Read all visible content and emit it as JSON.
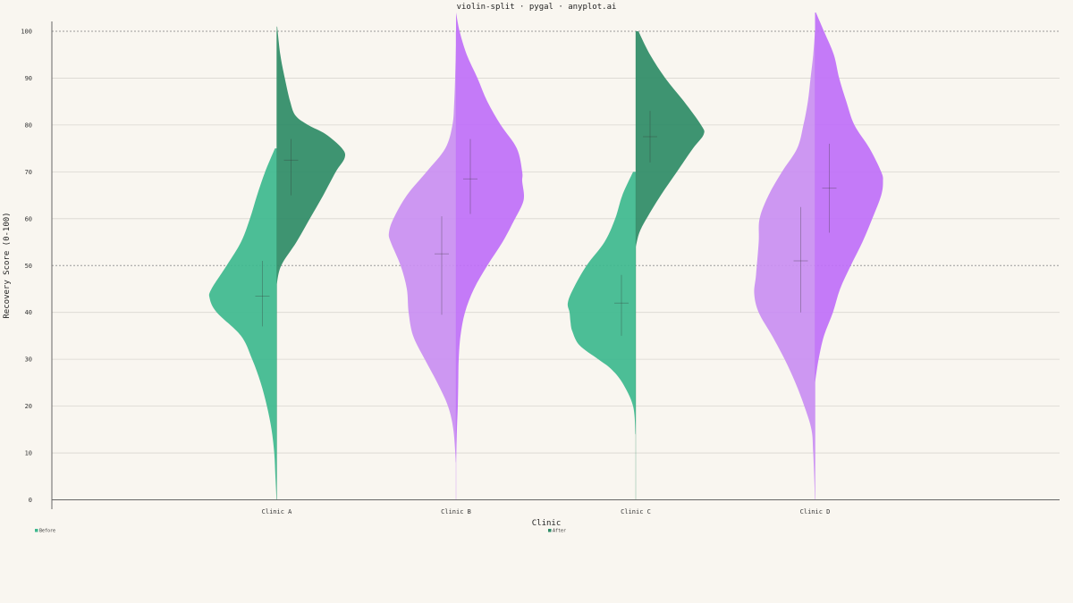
{
  "colors": {
    "background": "#f9f6f0",
    "grid": "#d9d6d0",
    "axis": "#555555",
    "before_teal": "#3db88e",
    "after_teal": "#2e8b66",
    "before_purple": "#c98ef2",
    "after_purple": "#bf6ff9"
  },
  "chart_data": {
    "type": "violin-split",
    "title": "violin-split · pygal · anyplot.ai",
    "xlabel": "Clinic",
    "ylabel": "Recovery Score (0-100)",
    "ylim": [
      0,
      100
    ],
    "yticks": [
      "0",
      "10",
      "20",
      "30",
      "40",
      "50",
      "60",
      "70",
      "80",
      "90",
      "100"
    ],
    "reference_lines": [
      50,
      100
    ],
    "grid": true,
    "categories": [
      "Clinic A",
      "Clinic B",
      "Clinic C",
      "Clinic D"
    ],
    "legend": {
      "placement": "bottom",
      "entries": [
        "Before",
        "After"
      ]
    },
    "violins": [
      {
        "category": "Clinic A",
        "palette": "teal",
        "before": {
          "mean": 43.5,
          "range": [
            37,
            51
          ],
          "profile": [
            [
              0,
              0.2
            ],
            [
              5,
              1.5
            ],
            [
              10,
              2.8
            ],
            [
              15,
              5.8
            ],
            [
              20,
              11
            ],
            [
              25,
              18
            ],
            [
              30,
              27.5
            ],
            [
              35,
              40
            ],
            [
              40,
              67
            ],
            [
              43,
              75
            ],
            [
              45,
              73
            ],
            [
              50,
              56
            ],
            [
              55,
              40
            ],
            [
              60,
              30
            ],
            [
              65,
              22
            ],
            [
              70,
              13
            ],
            [
              75,
              2
            ]
          ]
        },
        "after": {
          "mean": 72.5,
          "range": [
            65,
            77
          ],
          "profile": [
            [
              46,
              0
            ],
            [
              50,
              5
            ],
            [
              55,
              22
            ],
            [
              60,
              37
            ],
            [
              65,
              52
            ],
            [
              70,
              66
            ],
            [
              73,
              76
            ],
            [
              75,
              73
            ],
            [
              78,
              55
            ],
            [
              80,
              35
            ],
            [
              82,
              21
            ],
            [
              85,
              15
            ],
            [
              90,
              9
            ],
            [
              95,
              4
            ],
            [
              101,
              0.5
            ]
          ]
        }
      },
      {
        "category": "Clinic B",
        "palette": "purple",
        "before": {
          "mean": 52.5,
          "range": [
            39.5,
            60.5
          ],
          "profile": [
            [
              8,
              0.2
            ],
            [
              15,
              3
            ],
            [
              20,
              9
            ],
            [
              25,
              21
            ],
            [
              30,
              35
            ],
            [
              35,
              48
            ],
            [
              40,
              53
            ],
            [
              45,
              55
            ],
            [
              50,
              62
            ],
            [
              55,
              73
            ],
            [
              57,
              75
            ],
            [
              60,
              70
            ],
            [
              65,
              55
            ],
            [
              70,
              33
            ],
            [
              75,
              12
            ],
            [
              80,
              4
            ],
            [
              85,
              2
            ],
            [
              90,
              1
            ],
            [
              97,
              0
            ]
          ]
        },
        "after": {
          "mean": 68.5,
          "range": [
            61,
            77
          ]
        }
      },
      {
        "category": "Clinic C",
        "palette": "teal",
        "before": {
          "mean": 42,
          "range": [
            35,
            48
          ],
          "profile": [
            [
              14,
              0.3
            ],
            [
              20,
              3
            ],
            [
              25,
              15
            ],
            [
              28,
              28
            ],
            [
              30,
              42
            ],
            [
              33,
              63
            ],
            [
              36,
              71
            ],
            [
              38,
              73
            ],
            [
              40,
              74
            ],
            [
              42,
              76
            ],
            [
              45,
              70
            ],
            [
              50,
              55
            ],
            [
              55,
              35
            ],
            [
              60,
              23
            ],
            [
              65,
              15
            ],
            [
              70,
              3
            ]
          ]
        },
        "after": {
          "mean": 77.5,
          "range": [
            72,
            83
          ]
        }
      },
      {
        "category": "Clinic D",
        "palette": "purple",
        "before": {
          "mean": 51,
          "range": [
            40,
            62.5
          ],
          "profile": [
            [
              0,
              0
            ],
            [
              10,
              2
            ],
            [
              15,
              4
            ],
            [
              20,
              12
            ],
            [
              25,
              22
            ],
            [
              30,
              34
            ],
            [
              35,
              48
            ],
            [
              40,
              63
            ],
            [
              44,
              68
            ],
            [
              48,
              66
            ],
            [
              55,
              63
            ],
            [
              60,
              62
            ],
            [
              65,
              52
            ],
            [
              70,
              37
            ],
            [
              75,
              20
            ],
            [
              80,
              13
            ],
            [
              85,
              8
            ],
            [
              90,
              5
            ],
            [
              95,
              2
            ],
            [
              100,
              0
            ]
          ]
        },
        "after": {
          "mean": 66.5,
          "range": [
            57,
            76
          ]
        }
      }
    ]
  }
}
